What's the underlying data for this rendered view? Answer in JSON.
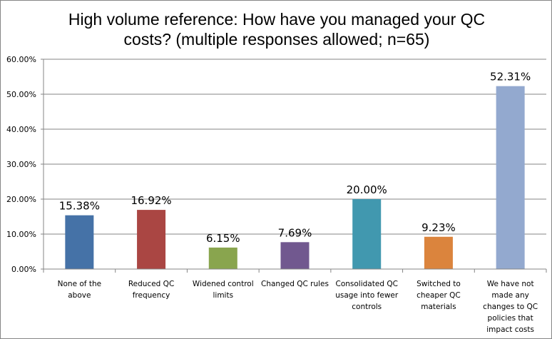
{
  "chart_data": {
    "type": "bar",
    "title_lines": [
      "High volume reference: How have you managed your QC",
      "costs? (multiple responses allowed; n=65)"
    ],
    "categories": [
      [
        "None of the",
        "above"
      ],
      [
        "Reduced QC",
        "frequency"
      ],
      [
        "Widened control",
        "limits"
      ],
      [
        "Changed QC rules"
      ],
      [
        "Consolidated QC",
        "usage into fewer",
        "controls"
      ],
      [
        "Switched to",
        "cheaper QC",
        "materials"
      ],
      [
        "We have not",
        "made any",
        "changes to QC",
        "policies that",
        "impact costs"
      ]
    ],
    "values": [
      15.38,
      16.92,
      6.15,
      7.69,
      20.0,
      9.23,
      52.31
    ],
    "data_labels": [
      "15.38%",
      "16.92%",
      "6.15%",
      "7.69%",
      "20.00%",
      "9.23%",
      "52.31%"
    ],
    "colors": [
      "#4572A7",
      "#AA4643",
      "#89A54E",
      "#71588F",
      "#4198AF",
      "#DB843D",
      "#93A9CF"
    ],
    "ylim": [
      0,
      60
    ],
    "yticks": [
      "0.00%",
      "10.00%",
      "20.00%",
      "30.00%",
      "40.00%",
      "50.00%",
      "60.00%"
    ],
    "grid": true,
    "legend": "none",
    "xlabel": "",
    "ylabel": ""
  }
}
